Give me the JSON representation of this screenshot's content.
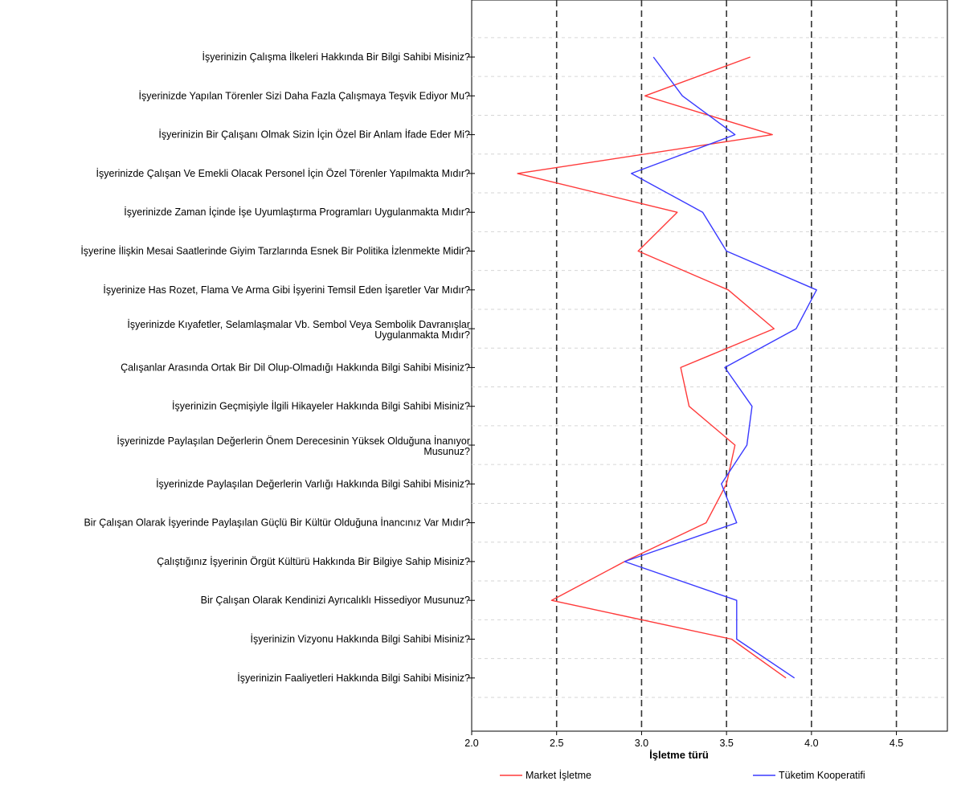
{
  "chart_data": {
    "type": "line",
    "orientation": "horizontal",
    "xlabel": "İşletme türü",
    "xlim": [
      2.0,
      4.8
    ],
    "xticks": [
      2.0,
      2.5,
      3.0,
      3.5,
      4.0,
      4.5
    ],
    "xtick_labels": [
      "2.0",
      "2.5",
      "3.0",
      "3.5",
      "4.0",
      "4.5"
    ],
    "reference_lines": [
      2.5,
      3.0,
      3.5,
      4.0,
      4.5
    ],
    "categories": [
      [
        "İşyerinizin Çalışma İlkeleri Hakkında Bir Bilgi Sahibi Misiniz?"
      ],
      [
        "İşyerinizde Yapılan Törenler Sizi Daha Fazla Çalışmaya Teşvik Ediyor Mu?"
      ],
      [
        "İşyerinizin Bir Çalışanı Olmak Sizin İçin Özel Bir Anlam İfade Eder Mi?"
      ],
      [
        "İşyerinizde Çalışan Ve Emekli Olacak Personel İçin Özel Törenler Yapılmakta Mıdır?"
      ],
      [
        "İşyerinizde Zaman İçinde İşe Uyumlaştırma Programları Uygulanmakta Mıdır?"
      ],
      [
        "İşyerine İlişkin Mesai Saatlerinde Giyim Tarzlarında Esnek Bir Politika İzlenmekte Midir?"
      ],
      [
        "İşyerinize Has Rozet, Flama Ve Arma Gibi İşyerini Temsil Eden İşaretler Var Mıdır?"
      ],
      [
        "İşyerinizde Kıyafetler, Selamlaşmalar Vb. Sembol Veya Sembolik Davranışlar",
        "Uygulanmakta Mıdır?"
      ],
      [
        "Çalışanlar Arasında Ortak Bir Dil Olup-Olmadığı Hakkında Bilgi Sahibi Misiniz?"
      ],
      [
        "İşyerinizin Geçmişiyle İlgili Hikayeler Hakkında Bilgi Sahibi Misiniz?"
      ],
      [
        "İşyerinizde Paylaşılan Değerlerin Önem Derecesinin Yüksek Olduğuna İnanıyor",
        "Musunuz?"
      ],
      [
        "İşyerinizde Paylaşılan Değerlerin Varlığı Hakkında Bilgi Sahibi Misiniz?"
      ],
      [
        "Bir Çalışan Olarak İşyerinde Paylaşılan Güçlü Bir Kültür Olduğuna İnancınız Var Mıdır?"
      ],
      [
        "Çalıştığınız İşyerinin Örgüt Kültürü Hakkında Bir Bilgiye Sahip Misiniz?"
      ],
      [
        "Bir Çalışan Olarak Kendinizi Ayrıcalıklı Hissediyor Musunuz?"
      ],
      [
        "İşyerinizin Vizyonu Hakkında Bilgi Sahibi Misiniz?"
      ],
      [
        "İşyerinizin Faaliyetleri Hakkında Bilgi Sahibi Misiniz?"
      ]
    ],
    "series": [
      {
        "name": "Market İşletme",
        "color": "#ff3a3a",
        "values": [
          3.64,
          3.02,
          3.77,
          2.27,
          3.21,
          2.98,
          3.51,
          3.78,
          3.23,
          3.28,
          3.55,
          3.5,
          3.38,
          2.9,
          2.47,
          3.53,
          3.85
        ]
      },
      {
        "name": "Tüketim Kooperatifi",
        "color": "#3a3aff",
        "values": [
          3.07,
          3.24,
          3.55,
          2.94,
          3.36,
          3.5,
          4.03,
          3.91,
          3.49,
          3.65,
          3.62,
          3.47,
          3.56,
          2.9,
          3.56,
          3.56,
          3.9
        ]
      }
    ],
    "grid": true,
    "legend": "bottom"
  }
}
